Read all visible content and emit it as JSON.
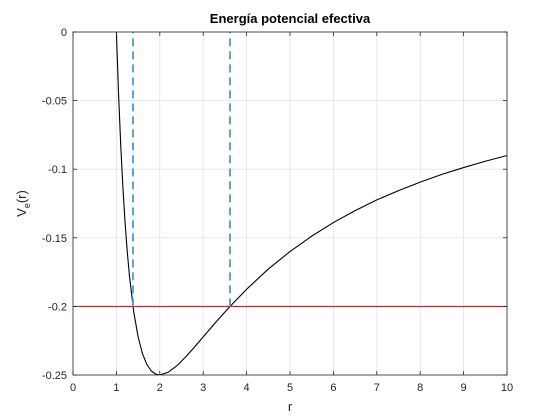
{
  "chart_data": {
    "type": "line",
    "title": "Energía potencial efectiva",
    "xlabel": "r",
    "ylabel": {
      "main": "V",
      "subscript": "e",
      "suffix": "(r)"
    },
    "xlim": [
      0,
      10
    ],
    "ylim": [
      -0.25,
      0
    ],
    "xticks": [
      0,
      1,
      2,
      3,
      4,
      5,
      6,
      7,
      8,
      9,
      10
    ],
    "yticks": [
      0,
      -0.05,
      -0.1,
      -0.15,
      -0.2,
      -0.25
    ],
    "ytick_labels": [
      "0",
      "-0.05",
      "-0.1",
      "-0.15",
      "-0.2",
      "-0.25"
    ],
    "grid": true,
    "series": [
      {
        "style": "solid",
        "color": "#000000",
        "x": [
          1.0,
          1.05,
          1.1,
          1.15,
          1.2,
          1.25,
          1.3,
          1.4,
          1.5,
          1.6,
          1.7,
          1.8,
          1.9,
          2.0,
          2.2,
          2.4,
          2.6,
          2.8,
          3.0,
          3.3,
          3.6,
          4.0,
          4.5,
          5.0,
          5.5,
          6.0,
          6.5,
          7.0,
          7.5,
          8.0,
          8.5,
          9.0,
          9.5,
          10.0
        ],
        "y": [
          0.0,
          -0.0454,
          -0.0826,
          -0.1134,
          -0.1389,
          -0.16,
          -0.1775,
          -0.2041,
          -0.2222,
          -0.2344,
          -0.2422,
          -0.2469,
          -0.2493,
          -0.25,
          -0.2479,
          -0.2431,
          -0.2367,
          -0.2296,
          -0.2222,
          -0.2112,
          -0.2006,
          -0.1875,
          -0.1728,
          -0.16,
          -0.1488,
          -0.1389,
          -0.1302,
          -0.1224,
          -0.1156,
          -0.1094,
          -0.1038,
          -0.0988,
          -0.0942,
          -0.09
        ]
      },
      {
        "style": "solid",
        "color": "#e8121f",
        "x": [
          0,
          10
        ],
        "y": [
          -0.2,
          -0.2
        ]
      },
      {
        "style": "dashed",
        "color": "#4a9ad4",
        "x": [
          1.382,
          1.382
        ],
        "y": [
          -0.2,
          0
        ]
      },
      {
        "style": "dashed",
        "color": "#4a9ad4",
        "x": [
          3.618,
          3.618
        ],
        "y": [
          -0.2,
          0
        ]
      }
    ]
  }
}
